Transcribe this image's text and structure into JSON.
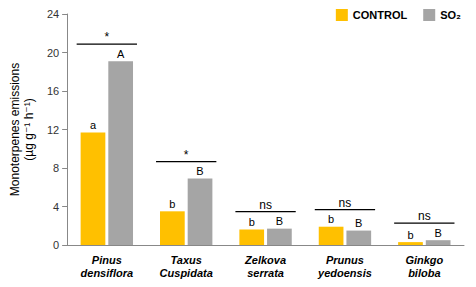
{
  "chart_data": {
    "type": "bar",
    "y_label": "Monoterpenes emissions\n(µg g⁻¹ h⁻¹)",
    "categories": [
      "Pinus densiflora",
      "Taxus Cuspidata",
      "Zelkova serrata",
      "Prunus yedoensis",
      "Ginkgo biloba"
    ],
    "series": [
      {
        "name": "CONTROL",
        "color": "#FFC000",
        "values": [
          11.7,
          3.5,
          1.6,
          1.9,
          0.3
        ],
        "letters": [
          "a",
          "b",
          "b",
          "b",
          "b"
        ]
      },
      {
        "name": "SO₂",
        "color": "#A5A5A5",
        "values": [
          19.1,
          6.9,
          1.7,
          1.5,
          0.5
        ],
        "letters": [
          "A",
          "B",
          "B",
          "B",
          "B"
        ]
      }
    ],
    "significance": [
      "*",
      "*",
      "ns",
      "ns",
      "ns"
    ],
    "ylim": [
      0,
      24
    ],
    "yticks": [
      0,
      4,
      8,
      12,
      16,
      20,
      24
    ],
    "grid": false,
    "legend": "top-right",
    "data_labels": false
  }
}
